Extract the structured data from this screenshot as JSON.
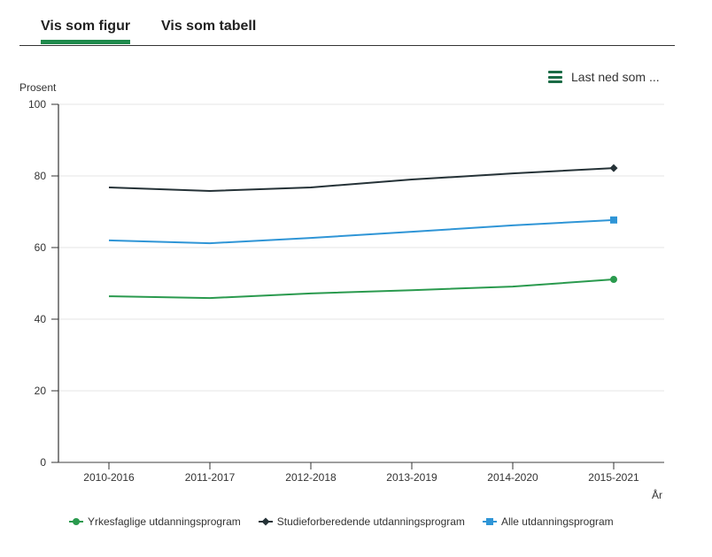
{
  "tabs": [
    {
      "label": "Vis som figur",
      "active": true
    },
    {
      "label": "Vis som tabell",
      "active": false
    }
  ],
  "download": {
    "label": "Last ned som ...",
    "icon": "hamburger-menu-icon"
  },
  "chart_data": {
    "type": "line",
    "title": "",
    "ylabel": "Prosent",
    "xlabel": "År",
    "ylim": [
      0,
      100
    ],
    "yticks": [
      0,
      20,
      40,
      60,
      80,
      100
    ],
    "grid": true,
    "legend_position": "bottom",
    "categories": [
      "2010-2016",
      "2011-2017",
      "2012-2018",
      "2013-2019",
      "2014-2020",
      "2015-2021"
    ],
    "series": [
      {
        "name": "Yrkesfaglige utdanningsprogram",
        "color": "#2a9a4e",
        "marker": "circle",
        "values": [
          46.4,
          45.9,
          47.2,
          48.1,
          49.1,
          51.1
        ]
      },
      {
        "name": "Studieforberedende utdanningsprogram",
        "color": "#253237",
        "marker": "diamond",
        "values": [
          76.8,
          75.8,
          76.8,
          79.0,
          80.7,
          82.2
        ]
      },
      {
        "name": "Alle utdanningsprogram",
        "color": "#2f95d6",
        "marker": "square",
        "values": [
          62.0,
          61.2,
          62.7,
          64.4,
          66.2,
          67.7
        ]
      }
    ]
  }
}
